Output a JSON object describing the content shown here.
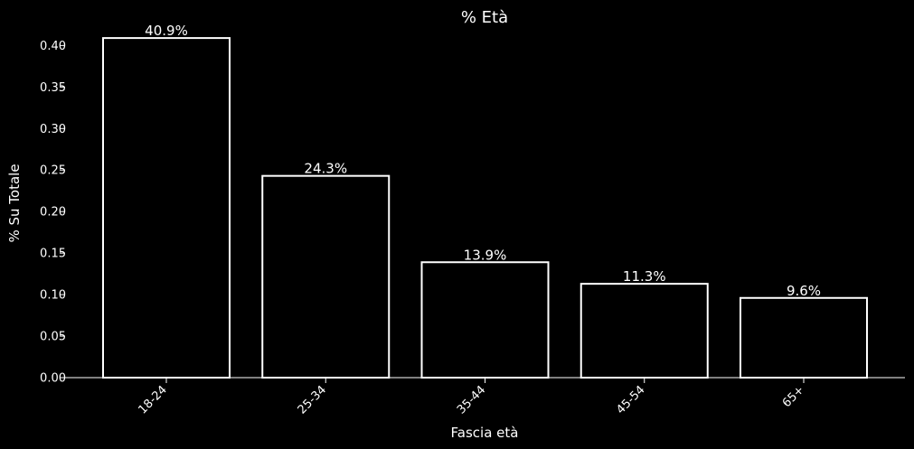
{
  "chart_data": {
    "type": "bar",
    "title": "% Età",
    "xlabel": "Fascia età",
    "ylabel": "% Su Totale",
    "categories": [
      "18-24",
      "25-34",
      "35-44",
      "45-54",
      "65+"
    ],
    "values": [
      0.409,
      0.243,
      0.139,
      0.113,
      0.096
    ],
    "data_labels": [
      "40.9%",
      "24.3%",
      "13.9%",
      "11.3%",
      "9.6%"
    ],
    "ylim": [
      0,
      0.42
    ],
    "yticks": [
      0.0,
      0.05,
      0.1,
      0.15,
      0.2,
      0.25,
      0.3,
      0.35,
      0.4
    ],
    "ytick_labels": [
      "0.00",
      "0.05",
      "0.10",
      "0.15",
      "0.20",
      "0.25",
      "0.30",
      "0.35",
      "0.40"
    ],
    "grid": false,
    "legend": "none",
    "colors": {
      "background": "#000000",
      "bar_fill": "#000000",
      "bar_edge": "#ffffff",
      "text": "#ffffff"
    }
  }
}
